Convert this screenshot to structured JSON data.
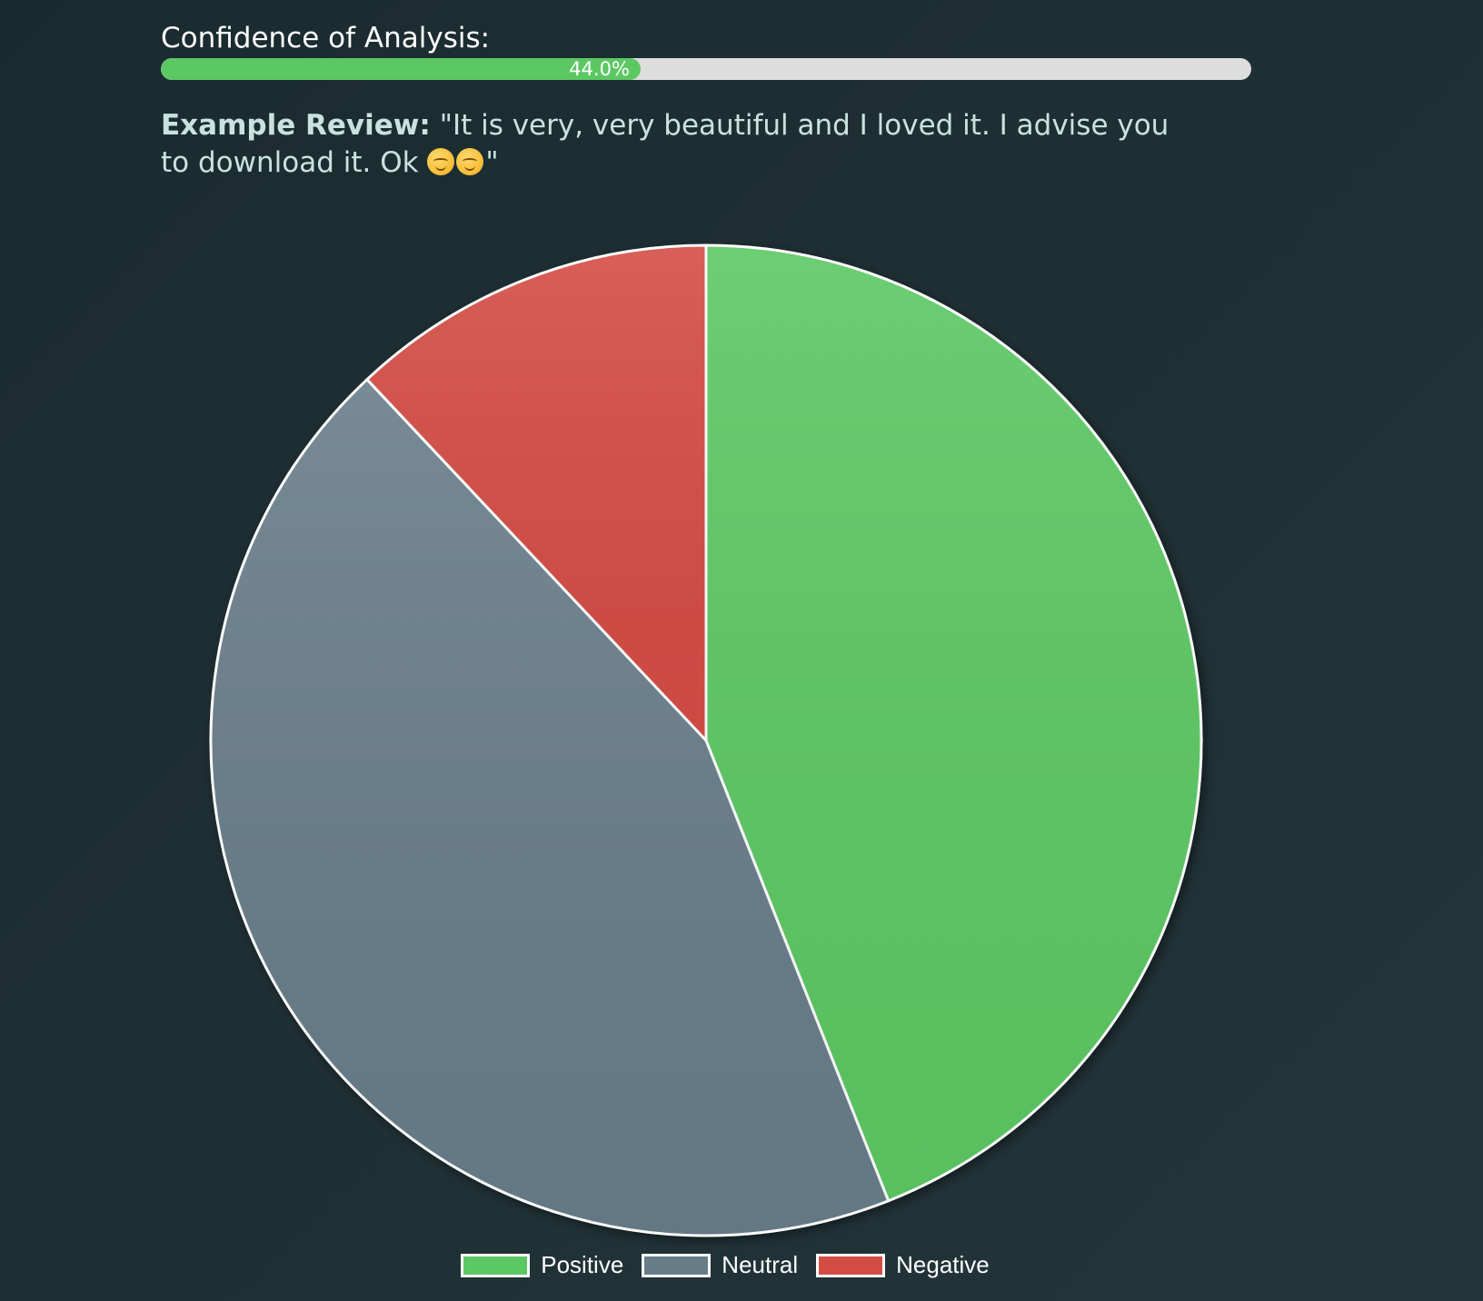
{
  "confidence": {
    "label": "Confidence of Analysis:",
    "value_percent": 44.0,
    "value_text": "44.0%",
    "bar_color": "#5cc864",
    "track_color": "#dddddd"
  },
  "review": {
    "label": "Example Review:",
    "text_before_emoji": "\"It is very, very beautiful and I loved it. I advise you to download it. Ok ",
    "emoji_names": [
      "smiling-face-icon",
      "smiling-face-icon"
    ],
    "text_after_emoji": "\""
  },
  "chart_data": {
    "type": "pie",
    "categories": [
      "Positive",
      "Neutral",
      "Negative"
    ],
    "values": [
      44,
      44,
      12
    ],
    "colors": [
      "#5cc864",
      "#677d8a",
      "#d44d44"
    ],
    "slice_border_color": "#ffffff",
    "legend_position": "bottom",
    "start_angle": "top",
    "direction": "clockwise"
  }
}
